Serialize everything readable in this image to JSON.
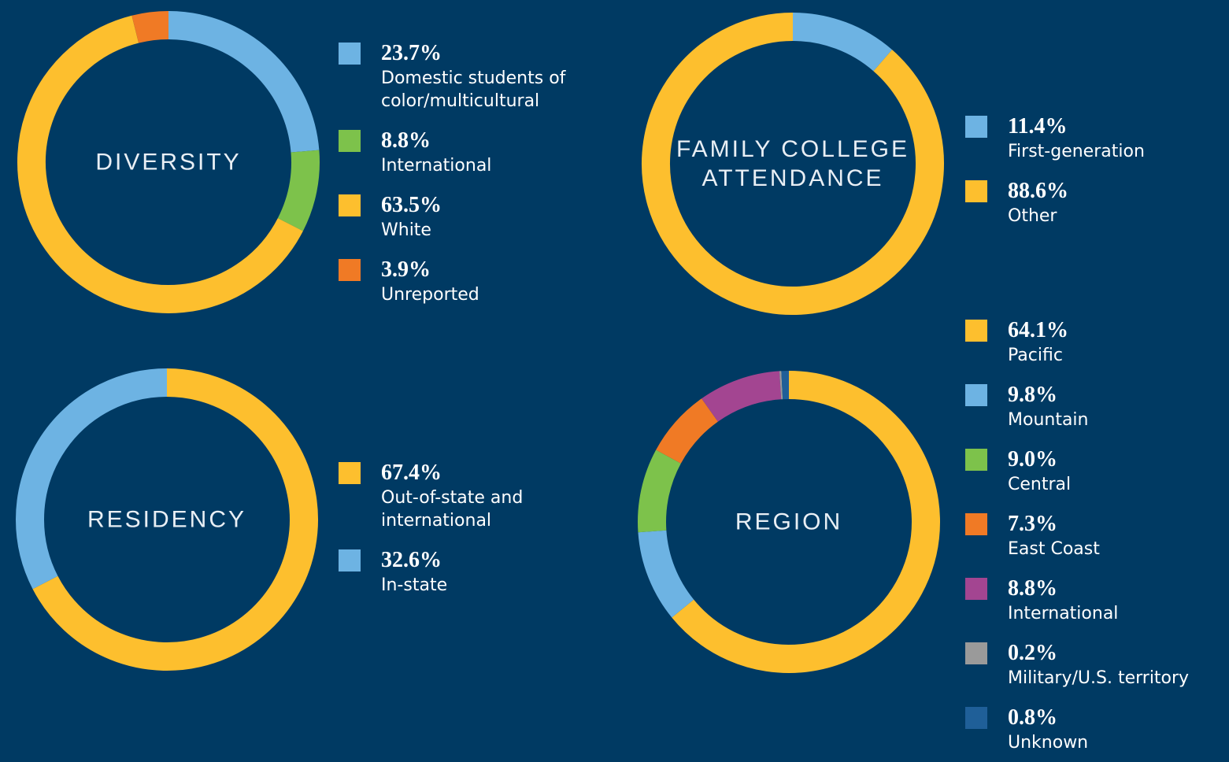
{
  "chart_data": [
    {
      "type": "pie",
      "title": "DIVERSITY",
      "categories": [
        "Domestic students of color/multicultural",
        "International",
        "White",
        "Unreported"
      ],
      "values": [
        23.7,
        8.8,
        63.5,
        3.9
      ],
      "value_labels": [
        "23.7%",
        "8.8%",
        "63.5%",
        "3.9%"
      ],
      "colors": [
        "#6db3e3",
        "#7dc24b",
        "#fdbf2e",
        "#f07a25"
      ]
    },
    {
      "type": "pie",
      "title": "FAMILY COLLEGE ATTENDANCE",
      "categories": [
        "First-generation",
        "Other"
      ],
      "values": [
        11.4,
        88.6
      ],
      "value_labels": [
        "11.4%",
        "88.6%"
      ],
      "colors": [
        "#6db3e3",
        "#fdbf2e"
      ]
    },
    {
      "type": "pie",
      "title": "RESIDENCY",
      "categories": [
        "Out-of-state and international",
        "In-state"
      ],
      "values": [
        67.4,
        32.6
      ],
      "value_labels": [
        "67.4%",
        "32.6%"
      ],
      "colors": [
        "#fdbf2e",
        "#6db3e3"
      ]
    },
    {
      "type": "pie",
      "title": "REGION",
      "categories": [
        "Pacific",
        "Mountain",
        "Central",
        "East Coast",
        "International",
        "Military/U.S. territory",
        "Unknown"
      ],
      "values": [
        64.1,
        9.8,
        9.0,
        7.3,
        8.8,
        0.2,
        0.8
      ],
      "value_labels": [
        "64.1%",
        "9.8%",
        "9.0%",
        "7.3%",
        "8.8%",
        "0.2%",
        "0.8%"
      ],
      "colors": [
        "#fdbf2e",
        "#6db3e3",
        "#7dc24b",
        "#f07a25",
        "#a34591",
        "#9a9a9a",
        "#1f5f98"
      ]
    }
  ]
}
